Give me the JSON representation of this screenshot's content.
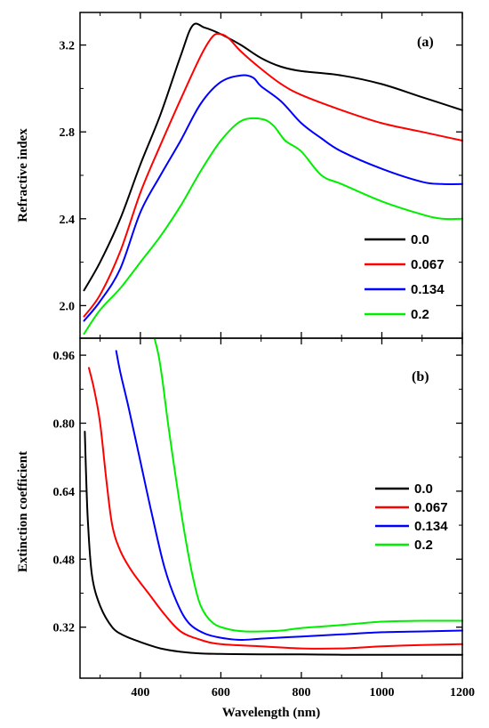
{
  "chart_data": [
    {
      "type": "line",
      "panel_label": "(a)",
      "xlabel": "",
      "ylabel": "Refractive index",
      "xlim": [
        250,
        1200
      ],
      "ylim": [
        1.85,
        3.35
      ],
      "yticks": [
        2.0,
        2.4,
        2.8,
        3.2
      ],
      "ytick_labels": [
        "2.0",
        "2.4",
        "2.8",
        "3.2"
      ],
      "legend_position": "bottom-right",
      "series": [
        {
          "name": "0.0",
          "color": "#000000",
          "x": [
            260,
            300,
            350,
            400,
            450,
            500,
            530,
            560,
            600,
            650,
            700,
            750,
            800,
            900,
            1000,
            1100,
            1200
          ],
          "y": [
            2.07,
            2.2,
            2.4,
            2.65,
            2.88,
            3.15,
            3.29,
            3.28,
            3.25,
            3.2,
            3.14,
            3.1,
            3.08,
            3.06,
            3.02,
            2.96,
            2.9
          ]
        },
        {
          "name": "0.067",
          "color": "#ff0000",
          "x": [
            260,
            300,
            350,
            400,
            450,
            500,
            550,
            580,
            600,
            620,
            650,
            700,
            750,
            800,
            900,
            1000,
            1100,
            1200
          ],
          "y": [
            1.95,
            2.05,
            2.25,
            2.52,
            2.74,
            2.95,
            3.15,
            3.24,
            3.25,
            3.23,
            3.17,
            3.09,
            3.02,
            2.97,
            2.9,
            2.84,
            2.8,
            2.76
          ]
        },
        {
          "name": "0.134",
          "color": "#0000ff",
          "x": [
            260,
            300,
            350,
            400,
            450,
            500,
            550,
            600,
            650,
            680,
            700,
            750,
            800,
            850,
            900,
            1000,
            1100,
            1150,
            1200
          ],
          "y": [
            1.93,
            2.02,
            2.17,
            2.43,
            2.6,
            2.76,
            2.93,
            3.03,
            3.06,
            3.05,
            3.01,
            2.94,
            2.84,
            2.77,
            2.71,
            2.63,
            2.57,
            2.56,
            2.56
          ]
        },
        {
          "name": "0.2",
          "color": "#00ee00",
          "x": [
            260,
            300,
            350,
            400,
            450,
            500,
            550,
            600,
            650,
            700,
            730,
            760,
            800,
            850,
            900,
            1000,
            1100,
            1150,
            1200
          ],
          "y": [
            1.87,
            1.98,
            2.08,
            2.2,
            2.32,
            2.46,
            2.62,
            2.76,
            2.85,
            2.86,
            2.83,
            2.76,
            2.71,
            2.6,
            2.56,
            2.48,
            2.42,
            2.4,
            2.4
          ]
        }
      ]
    },
    {
      "type": "line",
      "panel_label": "(b)",
      "xlabel": "Wavelength (nm)",
      "ylabel": "Extinction coefficient",
      "xlim": [
        250,
        1200
      ],
      "ylim": [
        0.2,
        1.0
      ],
      "xticks": [
        400,
        600,
        800,
        1000,
        1200
      ],
      "xtick_labels": [
        "400",
        "600",
        "800",
        "1000",
        "1200"
      ],
      "yticks": [
        0.32,
        0.48,
        0.64,
        0.8,
        0.96
      ],
      "ytick_labels": [
        "0.32",
        "0.48",
        "0.64",
        "0.80",
        "0.96"
      ],
      "legend_position": "right",
      "series": [
        {
          "name": "0.0",
          "color": "#000000",
          "x": [
            262,
            265,
            270,
            280,
            300,
            330,
            360,
            400,
            450,
            500,
            550,
            600,
            700,
            800,
            900,
            1000,
            1100,
            1200
          ],
          "y": [
            0.78,
            0.68,
            0.56,
            0.44,
            0.37,
            0.32,
            0.3,
            0.285,
            0.27,
            0.262,
            0.258,
            0.257,
            0.256,
            0.256,
            0.255,
            0.255,
            0.255,
            0.255
          ]
        },
        {
          "name": "0.067",
          "color": "#ff0000",
          "x": [
            272,
            285,
            300,
            315,
            330,
            350,
            380,
            420,
            460,
            500,
            550,
            600,
            700,
            800,
            900,
            1000,
            1100,
            1200
          ],
          "y": [
            0.93,
            0.88,
            0.8,
            0.67,
            0.56,
            0.5,
            0.45,
            0.4,
            0.35,
            0.31,
            0.29,
            0.28,
            0.275,
            0.27,
            0.27,
            0.275,
            0.278,
            0.28
          ]
        },
        {
          "name": "0.134",
          "color": "#0000ff",
          "x": [
            340,
            350,
            370,
            400,
            430,
            460,
            490,
            520,
            560,
            600,
            650,
            700,
            800,
            900,
            1000,
            1100,
            1200
          ],
          "y": [
            0.97,
            0.92,
            0.84,
            0.71,
            0.58,
            0.46,
            0.38,
            0.33,
            0.305,
            0.295,
            0.29,
            0.293,
            0.298,
            0.303,
            0.308,
            0.31,
            0.312
          ]
        },
        {
          "name": "0.2",
          "color": "#00ee00",
          "x": [
            435,
            445,
            455,
            470,
            490,
            510,
            530,
            550,
            580,
            620,
            660,
            700,
            750,
            800,
            900,
            1000,
            1100,
            1200
          ],
          "y": [
            1.0,
            0.96,
            0.9,
            0.79,
            0.66,
            0.54,
            0.44,
            0.37,
            0.33,
            0.315,
            0.31,
            0.31,
            0.312,
            0.318,
            0.325,
            0.333,
            0.335,
            0.335
          ]
        }
      ]
    }
  ]
}
